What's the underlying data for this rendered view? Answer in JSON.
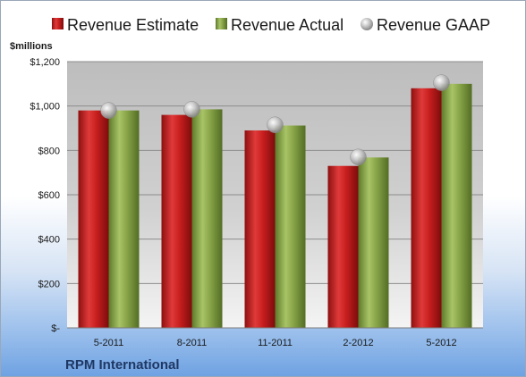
{
  "chart_data": {
    "type": "bar",
    "title": "",
    "ylabel": "$millions",
    "xlabel": "",
    "company": "RPM International",
    "categories": [
      "5-2011",
      "8-2011",
      "11-2011",
      "2-2012",
      "5-2012"
    ],
    "series": [
      {
        "name": "Revenue Estimate",
        "kind": "bar",
        "color": "#cc1f1f",
        "values": [
          980,
          960,
          890,
          730,
          1080
        ]
      },
      {
        "name": "Revenue Actual",
        "kind": "bar",
        "color": "#8aa84a",
        "values": [
          980,
          985,
          912,
          768,
          1100
        ]
      },
      {
        "name": "Revenue GAAP",
        "kind": "marker",
        "color": "#b8b8b8",
        "values": [
          980,
          985,
          915,
          770,
          1105
        ]
      }
    ],
    "ylim": [
      0,
      1200
    ],
    "yticks": [
      {
        "value": 0,
        "label": "$-"
      },
      {
        "value": 200,
        "label": "$200"
      },
      {
        "value": 400,
        "label": "$400"
      },
      {
        "value": 600,
        "label": "$600"
      },
      {
        "value": 800,
        "label": "$800"
      },
      {
        "value": 1000,
        "label": "$1,000"
      },
      {
        "value": 1200,
        "label": "$1,200"
      }
    ],
    "grid": true,
    "legend_position": "top"
  }
}
